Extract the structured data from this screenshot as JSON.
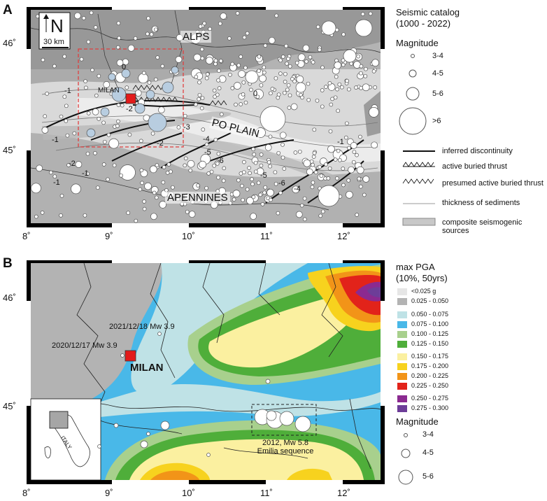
{
  "panel_a": {
    "letter": "A",
    "lat_labels": [
      "46˚",
      "45˚"
    ],
    "lon_labels": [
      "8˚",
      "9˚",
      "10˚",
      "11˚",
      "12˚"
    ],
    "north_letter": "N",
    "scale_text": "30 km",
    "place_labels": {
      "alps": "ALPS",
      "po_plain": "PO PLAIN",
      "apennines": "APENNINES",
      "milan": "MILAN"
    },
    "contour_labels": [
      "0",
      "-1",
      "-2",
      "0",
      "-3",
      "-2",
      "-1",
      "-4",
      "-5",
      "-6",
      "-2",
      "-1",
      "-1",
      "-5",
      "-6",
      "-4",
      "-1"
    ],
    "legend": {
      "title": [
        "Seismic catalog",
        "(1000 - 2022)"
      ],
      "magnitude_title": "Magnitude",
      "magnitudes": [
        "3-4",
        "4-5",
        "5-6",
        ">6"
      ],
      "lines": [
        "inferred discontinuity",
        "active buried thrust",
        "presumed active buried thrust",
        "thickness of sediments",
        "composite seismogenic sources"
      ]
    }
  },
  "panel_b": {
    "letter": "B",
    "lat_labels": [
      "46˚",
      "45˚"
    ],
    "lon_labels": [
      "8˚",
      "9˚",
      "10˚",
      "11˚",
      "12˚"
    ],
    "milan_label": "MILAN",
    "event_labels": [
      "2021/12/18 Mw 3.9",
      "2020/12/17 Mw 3.9"
    ],
    "sequence_label": [
      "2012, Mw 5.8",
      "Emilia sequence"
    ],
    "inset_label": "ITALY",
    "legend": {
      "title": [
        "max PGA",
        "(10%, 50yrs)"
      ],
      "classes": [
        {
          "label": "<0.025 g",
          "color": "#e6e6e6"
        },
        {
          "label": "0.025 - 0.050",
          "color": "#b3b3b3"
        },
        {
          "label": "0.050 - 0.075",
          "color": "#bfe2e6"
        },
        {
          "label": "0.075 - 0.100",
          "color": "#49b8e8"
        },
        {
          "label": "0.100 - 0.125",
          "color": "#a8d08d"
        },
        {
          "label": "0.125 - 0.150",
          "color": "#4fae3a"
        },
        {
          "label": "0.150 - 0.175",
          "color": "#fbf0a0"
        },
        {
          "label": "0.175 - 0.200",
          "color": "#f7d21e"
        },
        {
          "label": "0.200 - 0.225",
          "color": "#f29418"
        },
        {
          "label": "0.225 - 0.250",
          "color": "#e2231a"
        },
        {
          "label": "0.250 - 0.275",
          "color": "#8b2a90"
        },
        {
          "label": "0.275 - 0.300",
          "color": "#6d3d98"
        }
      ],
      "magnitude_title": "Magnitude",
      "magnitudes": [
        "3-4",
        "4-5",
        "5-6"
      ]
    }
  },
  "colors": {
    "milan_marker": "#e31b1b",
    "study_box": "#e04040"
  }
}
